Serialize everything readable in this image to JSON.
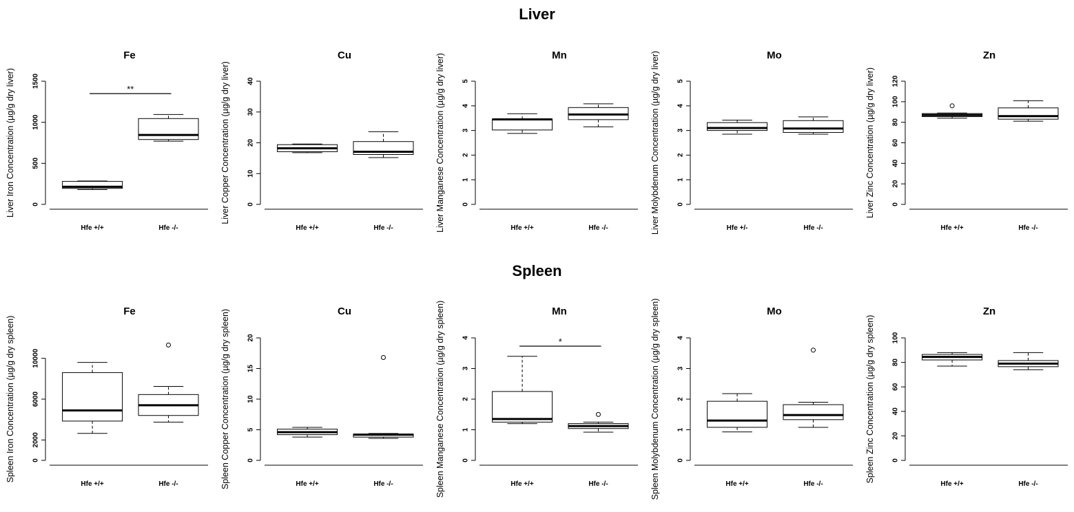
{
  "section_titles": {
    "liver": "Liver",
    "spleen": "Spleen"
  },
  "chart_data": [
    {
      "type": "boxplot",
      "section": "Liver",
      "title": "Fe",
      "ylabel": "Liver Iron Concentration (µg/g dry liver)",
      "xlabel": "",
      "categories": [
        "Hfe +/+",
        "Hfe -/-"
      ],
      "ylim": [
        0,
        1500
      ],
      "yticks": [
        0,
        500,
        1000,
        1500
      ],
      "boxes": [
        {
          "min": 180,
          "q1": 195,
          "median": 215,
          "q3": 280,
          "max": 285,
          "outliers": []
        },
        {
          "min": 770,
          "q1": 790,
          "median": 845,
          "q3": 1045,
          "max": 1095,
          "outliers": []
        }
      ],
      "significance": "**"
    },
    {
      "type": "boxplot",
      "section": "Liver",
      "title": "Cu",
      "ylabel": "Liver Copper Concentration (µg/g dry liver)",
      "xlabel": "",
      "categories": [
        "Hfe +/+",
        "Hfe -/-"
      ],
      "ylim": [
        0,
        40
      ],
      "yticks": [
        0,
        10,
        20,
        30,
        40
      ],
      "boxes": [
        {
          "min": 16.8,
          "q1": 17.1,
          "median": 18.2,
          "q3": 19.4,
          "max": 19.6,
          "outliers": []
        },
        {
          "min": 15.2,
          "q1": 16.2,
          "median": 17.1,
          "q3": 20.4,
          "max": 23.6,
          "outliers": []
        }
      ],
      "significance": ""
    },
    {
      "type": "boxplot",
      "section": "Liver",
      "title": "Mn",
      "ylabel": "Liver Manganese Concentration (µg/g dry liver)",
      "xlabel": "",
      "categories": [
        "Hfe +/+",
        "Hfe -/-"
      ],
      "ylim": [
        0,
        5
      ],
      "yticks": [
        0,
        1,
        2,
        3,
        4,
        5
      ],
      "boxes": [
        {
          "min": 2.88,
          "q1": 3.02,
          "median": 3.45,
          "q3": 3.46,
          "max": 3.68,
          "outliers": []
        },
        {
          "min": 3.15,
          "q1": 3.44,
          "median": 3.65,
          "q3": 3.93,
          "max": 4.08,
          "outliers": []
        }
      ],
      "significance": ""
    },
    {
      "type": "boxplot",
      "section": "Liver",
      "title": "Mo",
      "ylabel": "Liver Molybdenum Concentration (µg/g dry liver)",
      "xlabel": "",
      "categories": [
        "Hfe +/-",
        "Hfe -/-"
      ],
      "ylim": [
        0,
        5
      ],
      "yticks": [
        0,
        1,
        2,
        3,
        4,
        5
      ],
      "boxes": [
        {
          "min": 2.85,
          "q1": 3.0,
          "median": 3.1,
          "q3": 3.32,
          "max": 3.42,
          "outliers": []
        },
        {
          "min": 2.85,
          "q1": 2.92,
          "median": 3.08,
          "q3": 3.4,
          "max": 3.55,
          "outliers": []
        }
      ],
      "significance": ""
    },
    {
      "type": "boxplot",
      "section": "Liver",
      "title": "Zn",
      "ylabel": "Liver Zinc Concentration (µg/g dry liver)",
      "xlabel": "",
      "categories": [
        "Hfe +/+",
        "Hfe -/-"
      ],
      "ylim": [
        0,
        120
      ],
      "yticks": [
        0,
        20,
        40,
        60,
        80,
        100,
        120
      ],
      "boxes": [
        {
          "min": 84,
          "q1": 85.5,
          "median": 87,
          "q3": 88.5,
          "max": 89,
          "outliers": [
            96
          ]
        },
        {
          "min": 81,
          "q1": 83,
          "median": 86,
          "q3": 94,
          "max": 101,
          "outliers": []
        }
      ],
      "significance": ""
    },
    {
      "type": "boxplot",
      "section": "Spleen",
      "title": "Fe",
      "ylabel": "Spleen Iron Concentration (µg/g dry spleen)",
      "xlabel": "",
      "categories": [
        "Hfe +/+",
        "Hfe -/-"
      ],
      "ylim": [
        0,
        12000
      ],
      "yticks": [
        0,
        2000,
        6000,
        10000
      ],
      "boxes": [
        {
          "min": 2650,
          "q1": 3850,
          "median": 4900,
          "q3": 8600,
          "max": 9600,
          "outliers": []
        },
        {
          "min": 3750,
          "q1": 4400,
          "median": 5400,
          "q3": 6450,
          "max": 7250,
          "outliers": [
            11300
          ]
        }
      ],
      "significance": ""
    },
    {
      "type": "boxplot",
      "section": "Spleen",
      "title": "Cu",
      "ylabel": "Spleen Copper Concentration (µg/g dry spleen)",
      "xlabel": "",
      "categories": [
        "Hfe +/+",
        "Hfe -/-"
      ],
      "ylim": [
        0,
        20
      ],
      "yticks": [
        0,
        5,
        10,
        15,
        20
      ],
      "boxes": [
        {
          "min": 3.8,
          "q1": 4.2,
          "median": 4.6,
          "q3": 5.1,
          "max": 5.4,
          "outliers": []
        },
        {
          "min": 3.6,
          "q1": 3.8,
          "median": 4.2,
          "q3": 4.3,
          "max": 4.4,
          "outliers": [
            16.8
          ]
        }
      ],
      "significance": ""
    },
    {
      "type": "boxplot",
      "section": "Spleen",
      "title": "Mn",
      "ylabel": "Spleen Manganese Concentration (µg/g dry spleen)",
      "xlabel": "",
      "categories": [
        "Hfe +/+",
        "Hfe -/-"
      ],
      "ylim": [
        0,
        4
      ],
      "yticks": [
        0,
        1,
        2,
        3,
        4
      ],
      "boxes": [
        {
          "min": 1.2,
          "q1": 1.25,
          "median": 1.35,
          "q3": 2.25,
          "max": 3.4,
          "outliers": []
        },
        {
          "min": 0.92,
          "q1": 1.04,
          "median": 1.12,
          "q3": 1.2,
          "max": 1.25,
          "outliers": [
            1.5
          ]
        }
      ],
      "significance": "*"
    },
    {
      "type": "boxplot",
      "section": "Spleen",
      "title": "Mo",
      "ylabel": "Spleen Molybdenum Concentration (µg/g dry spleen)",
      "xlabel": "",
      "categories": [
        "Hfe +/+",
        "Hfe -/-"
      ],
      "ylim": [
        0,
        4
      ],
      "yticks": [
        0,
        1,
        2,
        3,
        4
      ],
      "boxes": [
        {
          "min": 0.93,
          "q1": 1.08,
          "median": 1.3,
          "q3": 1.93,
          "max": 2.18,
          "outliers": []
        },
        {
          "min": 1.08,
          "q1": 1.33,
          "median": 1.48,
          "q3": 1.82,
          "max": 1.9,
          "outliers": [
            3.6
          ]
        }
      ],
      "significance": ""
    },
    {
      "type": "boxplot",
      "section": "Spleen",
      "title": "Zn",
      "ylabel": "Spleen Zinc Concentration (µg/g dry spleen)",
      "xlabel": "",
      "categories": [
        "Hfe +/+",
        "Hfe -/-"
      ],
      "ylim": [
        0,
        100
      ],
      "yticks": [
        0,
        20,
        40,
        60,
        80,
        100
      ],
      "boxes": [
        {
          "min": 77,
          "q1": 82,
          "median": 84.5,
          "q3": 86.5,
          "max": 88,
          "outliers": []
        },
        {
          "min": 74,
          "q1": 76.5,
          "median": 79,
          "q3": 81.5,
          "max": 88,
          "outliers": []
        }
      ],
      "significance": ""
    }
  ]
}
